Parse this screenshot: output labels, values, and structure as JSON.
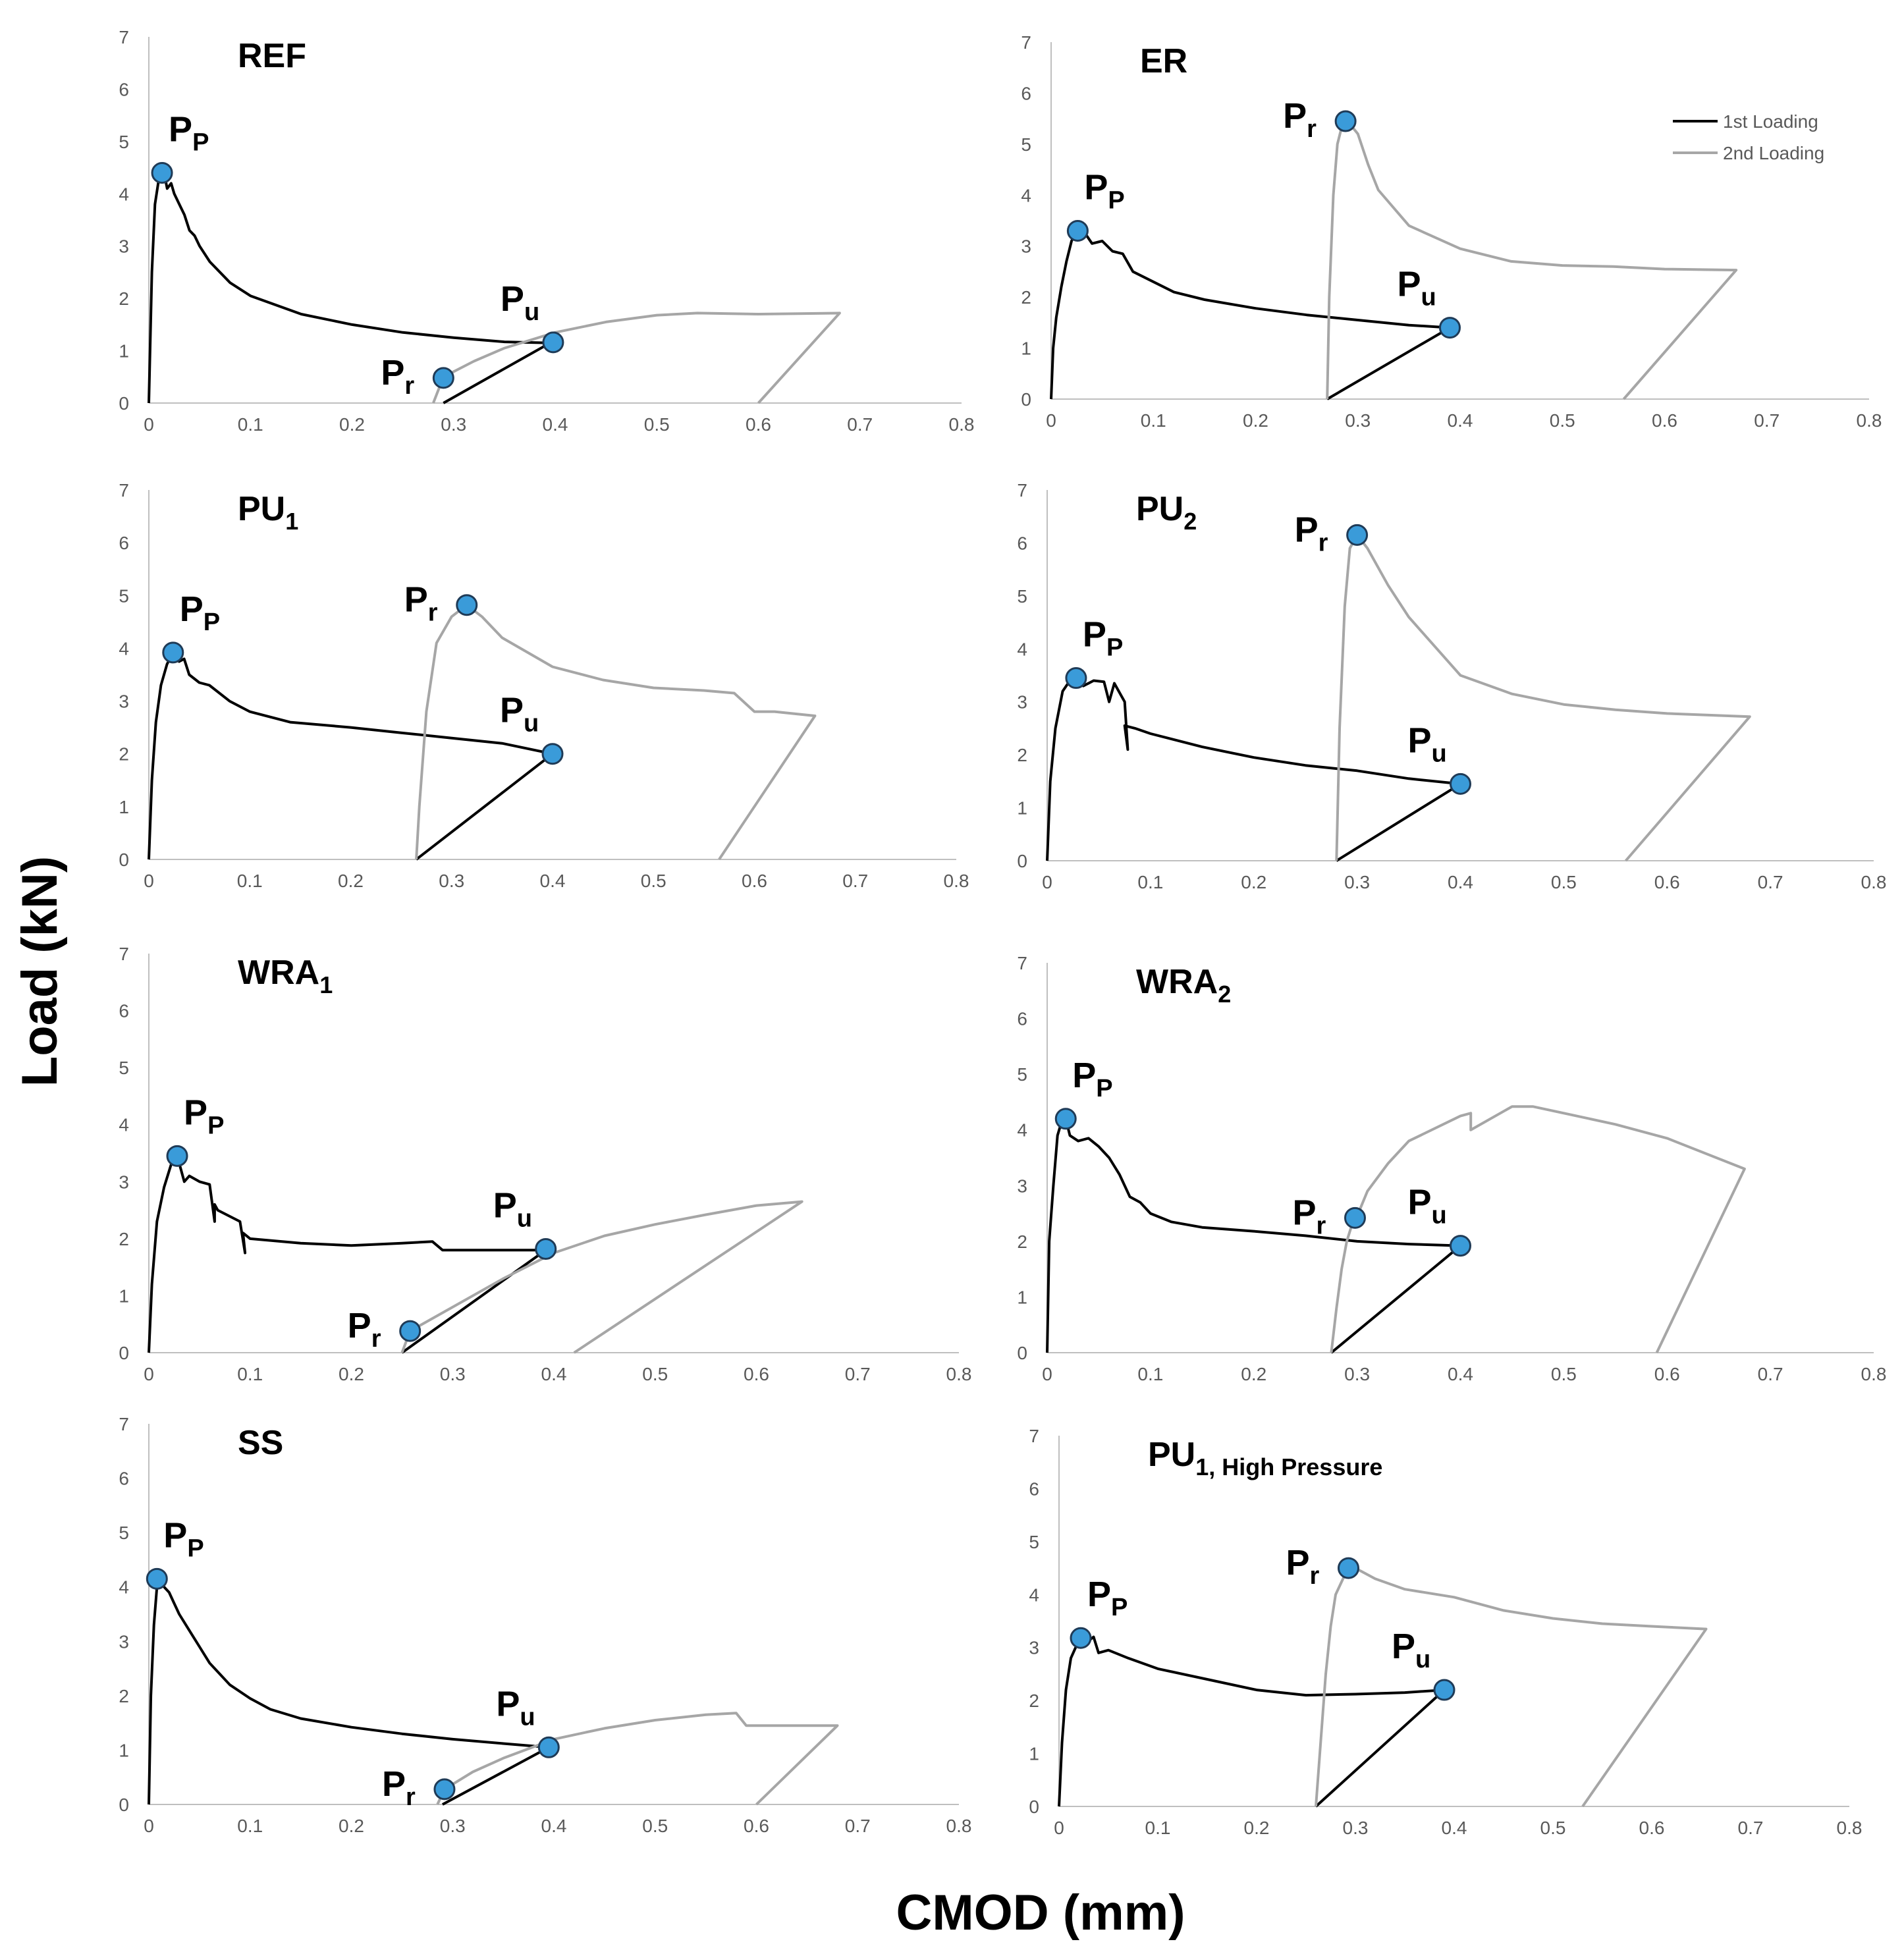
{
  "figure": {
    "y_axis_title": "Load (kN)",
    "x_axis_title": "CMOD (mm)"
  },
  "colors": {
    "first": "#000000",
    "second": "#a6a6a6",
    "marker": "#3a9bd9",
    "marker_edge": "#1f3b57",
    "axis": "#bfbfbf"
  },
  "legend": {
    "first": "1st Loading",
    "second": "2nd Loading"
  },
  "point_labels": {
    "peak": [
      "P",
      "P"
    ],
    "ultimate": [
      "P",
      "u"
    ],
    "reload": [
      "P",
      "r"
    ]
  },
  "chart_data": [
    {
      "type": "line",
      "title": "REF",
      "title_sub": "",
      "title_tail": "",
      "xlim": [
        0,
        0.8
      ],
      "ylim": [
        0,
        7
      ],
      "xticks": [
        "0",
        "0.1",
        "0.2",
        "0.3",
        "0.4",
        "0.5",
        "0.6",
        "0.7",
        "0.8"
      ],
      "yticks": [
        "0",
        "1",
        "2",
        "3",
        "4",
        "5",
        "6",
        "7"
      ],
      "legend": false,
      "series": [
        {
          "name": "1st Loading",
          "x": [
            0,
            0.003,
            0.006,
            0.01,
            0.013,
            0.016,
            0.018,
            0.022,
            0.025,
            0.03,
            0.035,
            0.04,
            0.045,
            0.05,
            0.06,
            0.08,
            0.1,
            0.15,
            0.2,
            0.25,
            0.3,
            0.35,
            0.395,
            0.29
          ],
          "y": [
            0,
            2.5,
            3.8,
            4.3,
            4.4,
            4.3,
            4.1,
            4.2,
            4.0,
            3.8,
            3.6,
            3.3,
            3.2,
            3.0,
            2.7,
            2.3,
            2.05,
            1.7,
            1.5,
            1.35,
            1.25,
            1.17,
            1.15,
            0
          ]
        },
        {
          "name": "2nd Loading",
          "x": [
            0.28,
            0.29,
            0.32,
            0.35,
            0.4,
            0.45,
            0.5,
            0.54,
            0.6,
            0.68,
            0.6
          ],
          "y": [
            0,
            0.5,
            0.8,
            1.05,
            1.35,
            1.55,
            1.68,
            1.72,
            1.7,
            1.72,
            0
          ]
        }
      ],
      "points": {
        "peak": {
          "x": 0.013,
          "y": 4.4
        },
        "ultimate": {
          "x": 0.398,
          "y": 1.16
        },
        "reload": {
          "x": 0.29,
          "y": 0.48
        }
      }
    },
    {
      "type": "line",
      "title": "ER",
      "title_sub": "",
      "title_tail": "",
      "xlim": [
        0,
        0.8
      ],
      "ylim": [
        0,
        7
      ],
      "xticks": [
        "0",
        "0.1",
        "0.2",
        "0.3",
        "0.4",
        "0.5",
        "0.6",
        "0.7",
        "0.8"
      ],
      "yticks": [
        "0",
        "1",
        "2",
        "3",
        "4",
        "5",
        "6",
        "7"
      ],
      "legend": true,
      "series": [
        {
          "name": "1st Loading",
          "x": [
            0,
            0.002,
            0.005,
            0.01,
            0.015,
            0.02,
            0.025,
            0.03,
            0.035,
            0.04,
            0.05,
            0.06,
            0.07,
            0.08,
            0.1,
            0.12,
            0.15,
            0.2,
            0.25,
            0.3,
            0.35,
            0.39,
            0.27
          ],
          "y": [
            0,
            1.0,
            1.6,
            2.2,
            2.7,
            3.1,
            3.3,
            3.2,
            3.2,
            3.05,
            3.1,
            2.9,
            2.85,
            2.5,
            2.3,
            2.1,
            1.95,
            1.78,
            1.65,
            1.55,
            1.45,
            1.4,
            0
          ]
        },
        {
          "name": "2nd Loading",
          "x": [
            0.27,
            0.272,
            0.276,
            0.28,
            0.285,
            0.29,
            0.3,
            0.31,
            0.32,
            0.35,
            0.4,
            0.45,
            0.5,
            0.55,
            0.6,
            0.67,
            0.56
          ],
          "y": [
            0,
            2.0,
            4.0,
            5.0,
            5.4,
            5.45,
            5.2,
            4.6,
            4.1,
            3.4,
            2.95,
            2.7,
            2.62,
            2.6,
            2.55,
            2.53,
            0
          ]
        }
      ],
      "points": {
        "peak": {
          "x": 0.026,
          "y": 3.3
        },
        "ultimate": {
          "x": 0.39,
          "y": 1.4
        },
        "reload": {
          "x": 0.288,
          "y": 5.45
        }
      }
    },
    {
      "type": "line",
      "title": "PU",
      "title_sub": "1",
      "title_tail": "",
      "xlim": [
        0,
        0.8
      ],
      "ylim": [
        0,
        7
      ],
      "xticks": [
        "0",
        "0.1",
        "0.2",
        "0.3",
        "0.4",
        "0.5",
        "0.6",
        "0.7",
        "0.8"
      ],
      "yticks": [
        "0",
        "1",
        "2",
        "3",
        "4",
        "5",
        "6",
        "7"
      ],
      "legend": false,
      "series": [
        {
          "name": "1st Loading",
          "x": [
            0,
            0.003,
            0.007,
            0.012,
            0.018,
            0.024,
            0.03,
            0.035,
            0.04,
            0.05,
            0.06,
            0.08,
            0.1,
            0.14,
            0.2,
            0.25,
            0.3,
            0.35,
            0.4,
            0.265
          ],
          "y": [
            0,
            1.5,
            2.6,
            3.3,
            3.7,
            3.92,
            3.75,
            3.8,
            3.5,
            3.35,
            3.3,
            3.0,
            2.8,
            2.6,
            2.5,
            2.4,
            2.3,
            2.2,
            2.0,
            0
          ]
        },
        {
          "name": "2nd Loading",
          "x": [
            0.265,
            0.268,
            0.275,
            0.285,
            0.3,
            0.315,
            0.33,
            0.35,
            0.4,
            0.45,
            0.5,
            0.55,
            0.58,
            0.6,
            0.62,
            0.66,
            0.565
          ],
          "y": [
            0,
            1.0,
            2.8,
            4.1,
            4.6,
            4.82,
            4.6,
            4.2,
            3.65,
            3.4,
            3.25,
            3.2,
            3.15,
            2.8,
            2.8,
            2.72,
            0
          ]
        }
      ],
      "points": {
        "peak": {
          "x": 0.024,
          "y": 3.92
        },
        "ultimate": {
          "x": 0.4,
          "y": 2.0
        },
        "reload": {
          "x": 0.315,
          "y": 4.82
        }
      }
    },
    {
      "type": "line",
      "title": "PU",
      "title_sub": "2",
      "title_tail": "",
      "xlim": [
        0,
        0.8
      ],
      "ylim": [
        0,
        7
      ],
      "xticks": [
        "0",
        "0.1",
        "0.2",
        "0.3",
        "0.4",
        "0.5",
        "0.6",
        "0.7",
        "0.8"
      ],
      "yticks": [
        "0",
        "1",
        "2",
        "3",
        "4",
        "5",
        "6",
        "7"
      ],
      "legend": false,
      "series": [
        {
          "name": "1st Loading",
          "x": [
            0,
            0.003,
            0.008,
            0.015,
            0.022,
            0.028,
            0.035,
            0.045,
            0.055,
            0.06,
            0.065,
            0.075,
            0.078,
            0.075,
            0.085,
            0.1,
            0.15,
            0.2,
            0.25,
            0.3,
            0.35,
            0.4,
            0.28
          ],
          "y": [
            0,
            1.5,
            2.5,
            3.2,
            3.4,
            3.45,
            3.3,
            3.4,
            3.38,
            3.0,
            3.35,
            3.0,
            2.1,
            2.55,
            2.5,
            2.4,
            2.15,
            1.95,
            1.8,
            1.7,
            1.55,
            1.45,
            0
          ]
        },
        {
          "name": "2nd Loading",
          "x": [
            0.28,
            0.283,
            0.288,
            0.293,
            0.3,
            0.31,
            0.33,
            0.35,
            0.4,
            0.45,
            0.5,
            0.55,
            0.6,
            0.68,
            0.56
          ],
          "y": [
            0,
            2.5,
            4.8,
            5.9,
            6.15,
            5.9,
            5.2,
            4.6,
            3.5,
            3.15,
            2.95,
            2.85,
            2.78,
            2.72,
            0
          ]
        }
      ],
      "points": {
        "peak": {
          "x": 0.028,
          "y": 3.45
        },
        "ultimate": {
          "x": 0.4,
          "y": 1.45
        },
        "reload": {
          "x": 0.3,
          "y": 6.15
        }
      }
    },
    {
      "type": "line",
      "title": "WRA",
      "title_sub": "1",
      "title_tail": "",
      "xlim": [
        0,
        0.8
      ],
      "ylim": [
        0,
        7
      ],
      "xticks": [
        "0",
        "0.1",
        "0.2",
        "0.3",
        "0.4",
        "0.5",
        "0.6",
        "0.7",
        "0.8"
      ],
      "yticks": [
        "0",
        "1",
        "2",
        "3",
        "4",
        "5",
        "6",
        "7"
      ],
      "legend": false,
      "series": [
        {
          "name": "1st Loading",
          "x": [
            0,
            0.003,
            0.008,
            0.015,
            0.022,
            0.028,
            0.035,
            0.04,
            0.05,
            0.06,
            0.065,
            0.065,
            0.068,
            0.09,
            0.095,
            0.093,
            0.1,
            0.15,
            0.2,
            0.25,
            0.28,
            0.29,
            0.35,
            0.392,
            0.25
          ],
          "y": [
            0,
            1.2,
            2.3,
            2.9,
            3.3,
            3.45,
            3.0,
            3.1,
            3.0,
            2.95,
            2.3,
            2.6,
            2.5,
            2.3,
            1.75,
            2.1,
            2.0,
            1.92,
            1.88,
            1.92,
            1.95,
            1.8,
            1.8,
            1.8,
            0
          ]
        },
        {
          "name": "2nd Loading",
          "x": [
            0.25,
            0.258,
            0.3,
            0.35,
            0.4,
            0.45,
            0.5,
            0.55,
            0.6,
            0.645,
            0.42
          ],
          "y": [
            0,
            0.38,
            0.8,
            1.3,
            1.75,
            2.05,
            2.25,
            2.42,
            2.58,
            2.65,
            0
          ]
        }
      ],
      "points": {
        "peak": {
          "x": 0.028,
          "y": 3.45
        },
        "ultimate": {
          "x": 0.392,
          "y": 1.82
        },
        "reload": {
          "x": 0.258,
          "y": 0.38
        }
      }
    },
    {
      "type": "line",
      "title": "WRA",
      "title_sub": "2",
      "title_tail": "",
      "xlim": [
        0,
        0.8
      ],
      "ylim": [
        0,
        7
      ],
      "xticks": [
        "0",
        "0.1",
        "0.2",
        "0.3",
        "0.4",
        "0.5",
        "0.6",
        "0.7",
        "0.8"
      ],
      "yticks": [
        "0",
        "1",
        "2",
        "3",
        "4",
        "5",
        "6",
        "7"
      ],
      "legend": false,
      "series": [
        {
          "name": "1st Loading",
          "x": [
            0,
            0.002,
            0.006,
            0.01,
            0.014,
            0.018,
            0.022,
            0.03,
            0.04,
            0.05,
            0.06,
            0.07,
            0.08,
            0.09,
            0.1,
            0.12,
            0.15,
            0.2,
            0.25,
            0.3,
            0.35,
            0.4,
            0.275
          ],
          "y": [
            0,
            2.0,
            3.0,
            3.9,
            4.15,
            4.2,
            3.9,
            3.8,
            3.85,
            3.7,
            3.5,
            3.2,
            2.8,
            2.7,
            2.5,
            2.35,
            2.25,
            2.18,
            2.1,
            2.0,
            1.95,
            1.92,
            0
          ]
        },
        {
          "name": "2nd Loading",
          "x": [
            0.275,
            0.28,
            0.285,
            0.29,
            0.295,
            0.3,
            0.31,
            0.33,
            0.35,
            0.4,
            0.41,
            0.41,
            0.45,
            0.47,
            0.5,
            0.55,
            0.6,
            0.675,
            0.59
          ],
          "y": [
            0,
            0.8,
            1.5,
            2.0,
            2.3,
            2.45,
            2.9,
            3.4,
            3.8,
            4.25,
            4.3,
            4.0,
            4.42,
            4.42,
            4.3,
            4.1,
            3.85,
            3.3,
            0
          ]
        }
      ],
      "points": {
        "peak": {
          "x": 0.018,
          "y": 4.2
        },
        "ultimate": {
          "x": 0.4,
          "y": 1.92
        },
        "reload": {
          "x": 0.298,
          "y": 2.42
        }
      }
    },
    {
      "type": "line",
      "title": "SS",
      "title_sub": "",
      "title_tail": "",
      "xlim": [
        0,
        0.8
      ],
      "ylim": [
        0,
        7
      ],
      "xticks": [
        "0",
        "0.1",
        "0.2",
        "0.3",
        "0.4",
        "0.5",
        "0.6",
        "0.7",
        "0.8"
      ],
      "yticks": [
        "0",
        "1",
        "2",
        "3",
        "4",
        "5",
        "6",
        "7"
      ],
      "legend": false,
      "series": [
        {
          "name": "1st Loading",
          "x": [
            0,
            0.002,
            0.005,
            0.008,
            0.012,
            0.015,
            0.02,
            0.025,
            0.03,
            0.04,
            0.05,
            0.06,
            0.08,
            0.1,
            0.12,
            0.15,
            0.2,
            0.25,
            0.3,
            0.35,
            0.395,
            0.29
          ],
          "y": [
            0,
            2.0,
            3.3,
            4.0,
            4.15,
            4.0,
            3.9,
            3.7,
            3.5,
            3.2,
            2.9,
            2.6,
            2.2,
            1.95,
            1.75,
            1.58,
            1.42,
            1.3,
            1.2,
            1.12,
            1.05,
            0
          ]
        },
        {
          "name": "2nd Loading",
          "x": [
            0.285,
            0.292,
            0.32,
            0.35,
            0.4,
            0.45,
            0.5,
            0.55,
            0.58,
            0.59,
            0.6,
            0.68,
            0.6
          ],
          "y": [
            0,
            0.28,
            0.6,
            0.85,
            1.2,
            1.4,
            1.55,
            1.65,
            1.68,
            1.45,
            1.45,
            1.45,
            0
          ]
        }
      ],
      "points": {
        "peak": {
          "x": 0.008,
          "y": 4.15
        },
        "ultimate": {
          "x": 0.395,
          "y": 1.05
        },
        "reload": {
          "x": 0.292,
          "y": 0.28
        }
      }
    },
    {
      "type": "line",
      "title": "PU",
      "title_sub": "1",
      "title_tail": ", High Pressure",
      "xlim": [
        0,
        0.8
      ],
      "ylim": [
        0,
        7
      ],
      "xticks": [
        "0",
        "0.1",
        "0.2",
        "0.3",
        "0.4",
        "0.5",
        "0.6",
        "0.7",
        "0.8"
      ],
      "yticks": [
        "0",
        "1",
        "2",
        "3",
        "4",
        "5",
        "6",
        "7"
      ],
      "legend": false,
      "series": [
        {
          "name": "1st Loading",
          "x": [
            0,
            0.003,
            0.007,
            0.012,
            0.018,
            0.022,
            0.028,
            0.035,
            0.04,
            0.05,
            0.07,
            0.1,
            0.15,
            0.2,
            0.25,
            0.3,
            0.35,
            0.39,
            0.26
          ],
          "y": [
            0,
            1.2,
            2.2,
            2.8,
            3.05,
            3.18,
            3.1,
            3.2,
            2.9,
            2.95,
            2.8,
            2.6,
            2.4,
            2.2,
            2.1,
            2.12,
            2.15,
            2.2,
            0
          ]
        },
        {
          "name": "2nd Loading",
          "x": [
            0.26,
            0.262,
            0.266,
            0.27,
            0.275,
            0.28,
            0.29,
            0.3,
            0.32,
            0.35,
            0.4,
            0.45,
            0.5,
            0.55,
            0.6,
            0.655,
            0.53
          ],
          "y": [
            0,
            0.5,
            1.5,
            2.5,
            3.4,
            4.0,
            4.4,
            4.5,
            4.3,
            4.1,
            3.95,
            3.7,
            3.55,
            3.45,
            3.4,
            3.35,
            0
          ]
        }
      ],
      "points": {
        "peak": {
          "x": 0.022,
          "y": 3.18
        },
        "ultimate": {
          "x": 0.39,
          "y": 2.2
        },
        "reload": {
          "x": 0.293,
          "y": 4.5
        }
      }
    }
  ]
}
